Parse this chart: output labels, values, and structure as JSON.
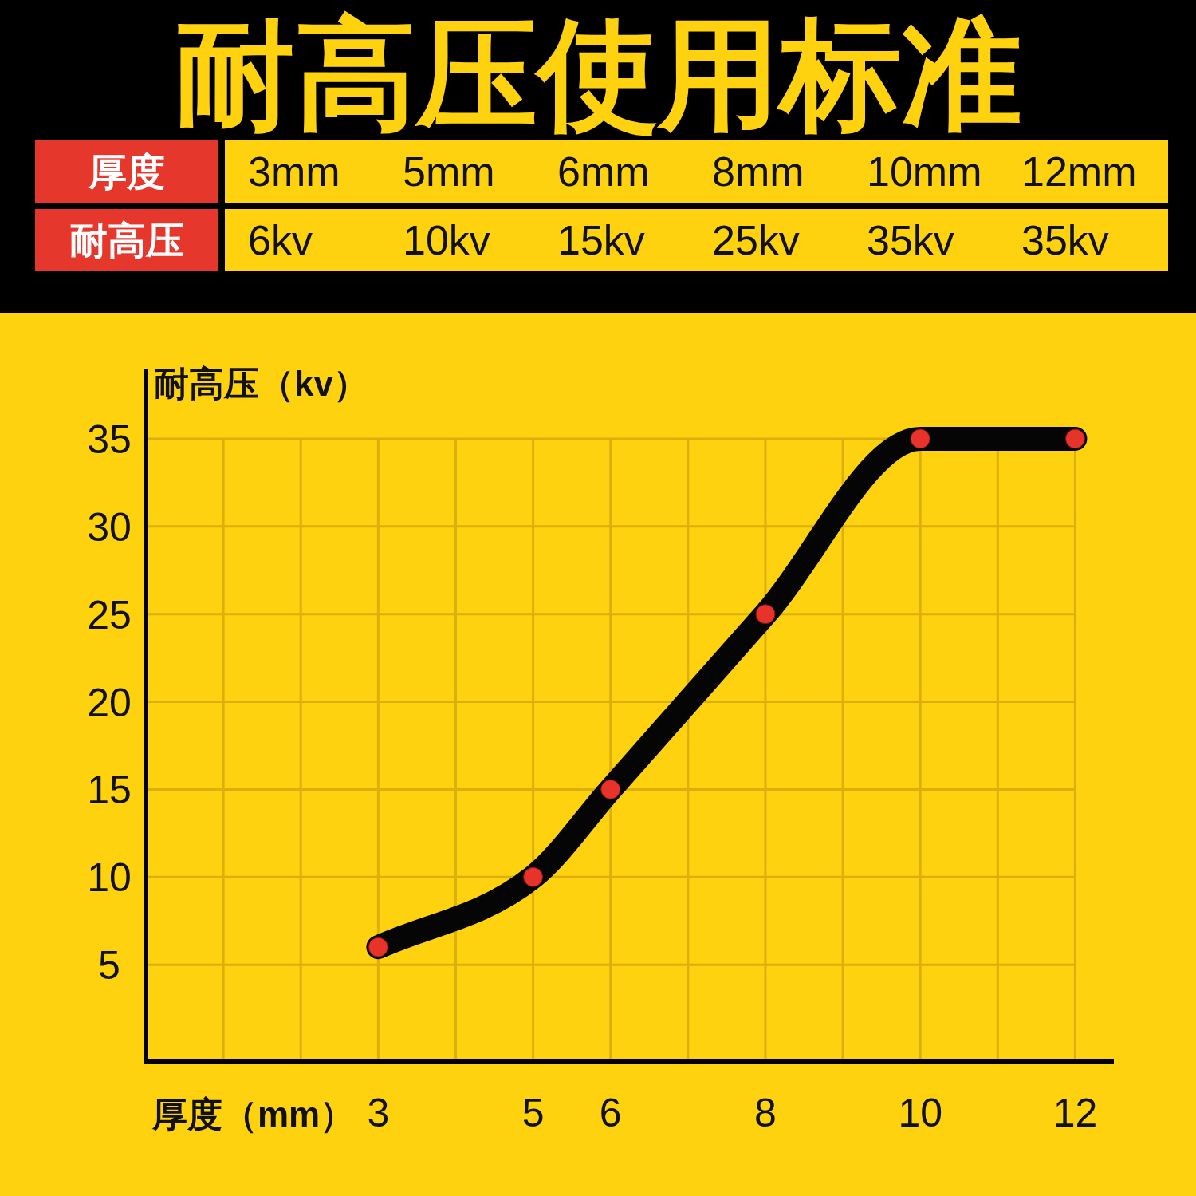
{
  "chart_data": {
    "type": "line",
    "title": "耐高压使用标准",
    "annotations": [
      "厚度",
      "3mm",
      "5mm",
      "6mm",
      "8mm",
      "10mm",
      "12mm",
      "耐高压",
      "6kv",
      "10kv",
      "15kv",
      "25kv",
      "35kv",
      "35kv"
    ],
    "xlabel": "厚度（mm）",
    "ylabel": "耐高压（kv）",
    "x": [
      3,
      5,
      6,
      8,
      10,
      12
    ],
    "series": [
      {
        "type": "line",
        "color": "#050505",
        "marker": "none",
        "values": [
          6,
          10,
          15,
          25,
          35,
          35
        ]
      },
      {
        "type": "scatter",
        "color": "#e8332b",
        "marker": "circle",
        "values": [
          6,
          10,
          15,
          25,
          35,
          35
        ]
      }
    ],
    "xlim": [
      0,
      12.5
    ],
    "ylim": [
      -0.5,
      39
    ],
    "xticks": [
      {
        "value": 1,
        "label": null
      },
      {
        "value": 2,
        "label": null
      },
      3,
      {
        "value": 4,
        "label": null
      },
      5,
      6,
      {
        "value": 7,
        "label": null
      },
      8,
      {
        "value": 9,
        "label": null
      },
      10,
      {
        "value": 11,
        "label": null
      },
      12
    ],
    "yticks": [
      5,
      10,
      15,
      20,
      25,
      30,
      35
    ],
    "grid": true,
    "line_style": "solid"
  }
}
